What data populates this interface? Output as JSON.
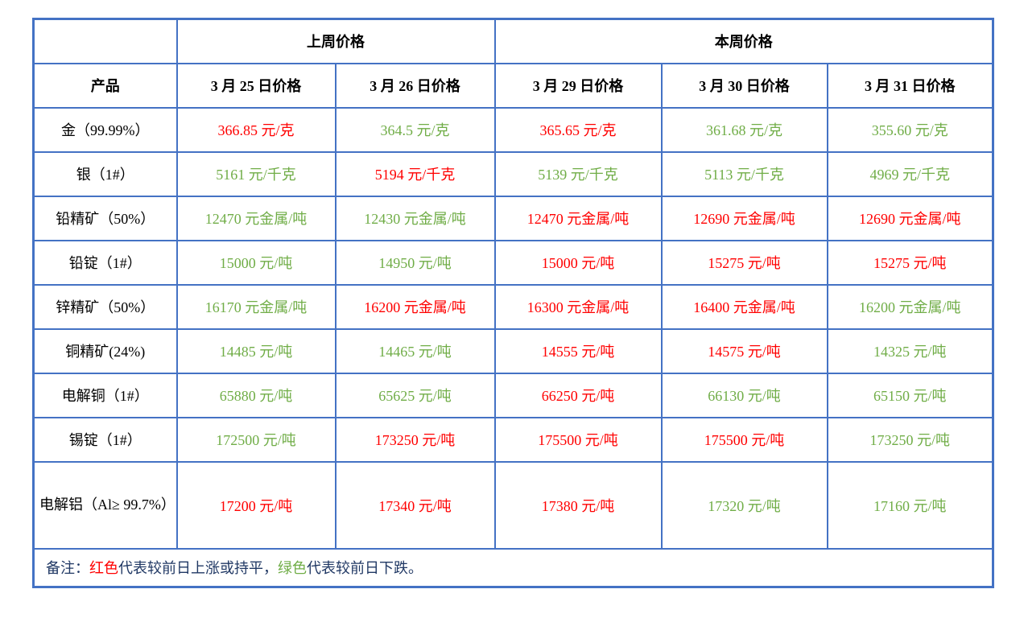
{
  "table": {
    "week_headers": [
      {
        "label": "上周价格",
        "colspan": 2
      },
      {
        "label": "本周价格",
        "colspan": 3
      }
    ],
    "product_header": "产品",
    "date_headers": [
      "3 月 25 日价格",
      "3 月 26 日价格",
      "3 月 29 日价格",
      "3 月 30 日价格",
      "3 月 31 日价格"
    ],
    "rows": [
      {
        "product": "金（99.99%）",
        "tall": false,
        "values": [
          {
            "text": "366.85 元/克",
            "color": "red"
          },
          {
            "text": "364.5 元/克",
            "color": "green"
          },
          {
            "text": "365.65 元/克",
            "color": "red"
          },
          {
            "text": "361.68 元/克",
            "color": "green"
          },
          {
            "text": "355.60 元/克",
            "color": "green"
          }
        ]
      },
      {
        "product": "银（1#）",
        "tall": false,
        "values": [
          {
            "text": "5161 元/千克",
            "color": "green"
          },
          {
            "text": "5194 元/千克",
            "color": "red"
          },
          {
            "text": "5139 元/千克",
            "color": "green"
          },
          {
            "text": "5113 元/千克",
            "color": "green"
          },
          {
            "text": "4969 元/千克",
            "color": "green"
          }
        ]
      },
      {
        "product": "铅精矿（50%）",
        "tall": false,
        "values": [
          {
            "text": "12470 元金属/吨",
            "color": "green"
          },
          {
            "text": "12430 元金属/吨",
            "color": "green"
          },
          {
            "text": "12470 元金属/吨",
            "color": "red"
          },
          {
            "text": "12690 元金属/吨",
            "color": "red"
          },
          {
            "text": "12690 元金属/吨",
            "color": "red"
          }
        ]
      },
      {
        "product": "铅锭（1#）",
        "tall": false,
        "values": [
          {
            "text": "15000 元/吨",
            "color": "green"
          },
          {
            "text": "14950 元/吨",
            "color": "green"
          },
          {
            "text": "15000 元/吨",
            "color": "red"
          },
          {
            "text": "15275 元/吨",
            "color": "red"
          },
          {
            "text": "15275 元/吨",
            "color": "red"
          }
        ]
      },
      {
        "product": "锌精矿（50%）",
        "tall": false,
        "values": [
          {
            "text": "16170 元金属/吨",
            "color": "green"
          },
          {
            "text": "16200 元金属/吨",
            "color": "red"
          },
          {
            "text": "16300 元金属/吨",
            "color": "red"
          },
          {
            "text": "16400 元金属/吨",
            "color": "red"
          },
          {
            "text": "16200 元金属/吨",
            "color": "green"
          }
        ]
      },
      {
        "product": "铜精矿(24%)",
        "tall": false,
        "values": [
          {
            "text": "14485 元/吨",
            "color": "green"
          },
          {
            "text": "14465 元/吨",
            "color": "green"
          },
          {
            "text": "14555 元/吨",
            "color": "red"
          },
          {
            "text": "14575 元/吨",
            "color": "red"
          },
          {
            "text": "14325 元/吨",
            "color": "green"
          }
        ]
      },
      {
        "product": "电解铜（1#）",
        "tall": false,
        "values": [
          {
            "text": "65880 元/吨",
            "color": "green"
          },
          {
            "text": "65625 元/吨",
            "color": "green"
          },
          {
            "text": "66250 元/吨",
            "color": "red"
          },
          {
            "text": "66130 元/吨",
            "color": "green"
          },
          {
            "text": "65150 元/吨",
            "color": "green"
          }
        ]
      },
      {
        "product": "锡锭（1#）",
        "tall": false,
        "values": [
          {
            "text": "172500 元/吨",
            "color": "green"
          },
          {
            "text": "173250 元/吨",
            "color": "red"
          },
          {
            "text": "175500 元/吨",
            "color": "red"
          },
          {
            "text": "175500 元/吨",
            "color": "red"
          },
          {
            "text": "173250 元/吨",
            "color": "green"
          }
        ]
      },
      {
        "product": "电解铝（Al≥ 99.7%）",
        "tall": true,
        "values": [
          {
            "text": "17200 元/吨",
            "color": "red"
          },
          {
            "text": "17340 元/吨",
            "color": "red"
          },
          {
            "text": "17380 元/吨",
            "color": "red"
          },
          {
            "text": "17320 元/吨",
            "color": "green"
          },
          {
            "text": "17160 元/吨",
            "color": "green"
          }
        ]
      }
    ],
    "note_parts": [
      {
        "text": "备注：",
        "color": "dark"
      },
      {
        "text": "红色",
        "color": "red"
      },
      {
        "text": "代表较前日上涨或持平，",
        "color": "dark"
      },
      {
        "text": "绿色",
        "color": "green"
      },
      {
        "text": "代表较前日下跌。",
        "color": "dark"
      }
    ],
    "colors": {
      "red": "#FF0000",
      "green": "#70AD47",
      "dark": "#203864",
      "border": "#4472C4"
    }
  }
}
